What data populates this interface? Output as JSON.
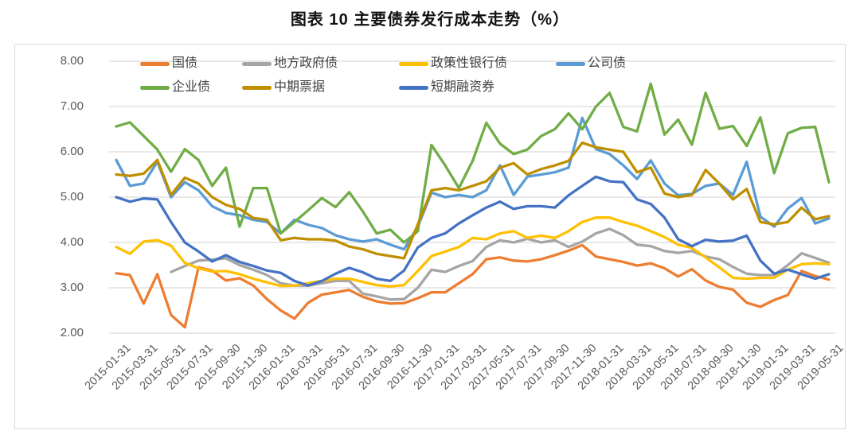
{
  "title": "图表 10 主要债券发行成本走势（%）",
  "frame": {
    "border_color": "#d9d9d9",
    "grid_color": "#d9d9d9",
    "tick_color": "#595959"
  },
  "chart_data": {
    "type": "line",
    "title": "图表 10 主要债券发行成本走势（%）",
    "xlabel": "",
    "ylabel": "",
    "ylim": [
      2.0,
      8.0
    ],
    "y_ticks": [
      "8.00",
      "7.00",
      "6.00",
      "5.00",
      "4.00",
      "3.00",
      "2.00"
    ],
    "grid": "horizontal",
    "legend_position": "top",
    "x": [
      "2015-01-31",
      "2015-02-28",
      "2015-03-31",
      "2015-04-30",
      "2015-05-31",
      "2015-06-30",
      "2015-07-31",
      "2015-08-31",
      "2015-09-30",
      "2015-10-31",
      "2015-11-30",
      "2015-12-31",
      "2016-01-31",
      "2016-02-29",
      "2016-03-31",
      "2016-04-30",
      "2016-05-31",
      "2016-06-30",
      "2016-07-31",
      "2016-08-31",
      "2016-09-30",
      "2016-10-31",
      "2016-11-30",
      "2016-12-31",
      "2017-01-31",
      "2017-02-28",
      "2017-03-31",
      "2017-04-30",
      "2017-05-31",
      "2017-06-30",
      "2017-07-31",
      "2017-08-31",
      "2017-09-30",
      "2017-10-31",
      "2017-11-30",
      "2017-12-31",
      "2018-01-31",
      "2018-02-28",
      "2018-03-31",
      "2018-04-30",
      "2018-05-31",
      "2018-06-30",
      "2018-07-31",
      "2018-08-31",
      "2018-09-30",
      "2018-10-31",
      "2018-11-30",
      "2018-12-31",
      "2019-01-31",
      "2019-02-28",
      "2019-03-31",
      "2019-04-30",
      "2019-05-31"
    ],
    "x_tick_labels": [
      "2015-01-31",
      "2015-03-31",
      "2015-05-31",
      "2015-07-31",
      "2015-09-30",
      "2015-11-30",
      "2016-01-31",
      "2016-03-31",
      "2016-05-31",
      "2016-07-31",
      "2016-09-30",
      "2016-11-30",
      "2017-01-31",
      "2017-03-31",
      "2017-05-31",
      "2017-07-31",
      "2017-09-30",
      "2017-11-30",
      "2018-01-31",
      "2018-03-31",
      "2018-05-31",
      "2018-07-31",
      "2018-09-30",
      "2018-11-30",
      "2019-01-31",
      "2019-03-31",
      "2019-05-31"
    ],
    "series": [
      {
        "name": "国债",
        "color": "#ED7D31",
        "values": [
          3.32,
          3.28,
          2.65,
          3.3,
          2.4,
          2.13,
          3.45,
          3.38,
          3.16,
          3.21,
          3.05,
          2.75,
          2.5,
          2.32,
          2.67,
          2.85,
          2.9,
          2.95,
          2.8,
          2.7,
          2.65,
          2.66,
          2.77,
          2.9,
          2.9,
          3.1,
          3.3,
          3.63,
          3.67,
          3.6,
          3.58,
          3.63,
          3.72,
          3.82,
          3.94,
          3.69,
          3.63,
          3.57,
          3.49,
          3.54,
          3.43,
          3.25,
          3.41,
          3.16,
          3.02,
          2.96,
          2.67,
          2.58,
          2.73,
          2.84,
          3.37,
          3.26,
          3.18
        ]
      },
      {
        "name": "地方政府债",
        "color": "#A5A5A5",
        "values": [
          null,
          null,
          null,
          null,
          3.35,
          3.48,
          3.6,
          3.62,
          3.65,
          3.5,
          3.4,
          3.28,
          3.1,
          3.05,
          3.05,
          3.1,
          3.15,
          3.15,
          2.87,
          2.81,
          2.74,
          2.75,
          3.0,
          3.4,
          3.35,
          3.48,
          3.59,
          3.9,
          4.05,
          4.0,
          4.08,
          4.0,
          4.05,
          3.9,
          4.02,
          4.2,
          4.3,
          4.16,
          3.95,
          3.92,
          3.81,
          3.77,
          3.81,
          3.69,
          3.63,
          3.46,
          3.31,
          3.28,
          3.28,
          3.5,
          3.76,
          3.66,
          3.55
        ]
      },
      {
        "name": "政策性银行债",
        "color": "#FFC000",
        "values": [
          3.9,
          3.75,
          4.02,
          4.05,
          3.93,
          3.55,
          3.43,
          3.36,
          3.37,
          3.3,
          3.2,
          3.12,
          3.04,
          3.05,
          3.1,
          3.15,
          3.2,
          3.2,
          3.13,
          3.06,
          3.03,
          3.06,
          3.37,
          3.7,
          3.8,
          3.9,
          4.1,
          4.07,
          4.2,
          4.25,
          4.1,
          4.15,
          4.1,
          4.25,
          4.45,
          4.55,
          4.55,
          4.45,
          4.37,
          4.25,
          4.12,
          3.95,
          3.88,
          3.67,
          3.45,
          3.22,
          3.2,
          3.22,
          3.22,
          3.4,
          3.52,
          3.54,
          3.52
        ]
      },
      {
        "name": "公司债",
        "color": "#5B9BD5",
        "values": [
          5.82,
          5.25,
          5.3,
          5.78,
          5.0,
          5.33,
          5.15,
          4.8,
          4.65,
          4.6,
          4.5,
          4.45,
          4.2,
          4.5,
          4.39,
          4.32,
          4.16,
          4.07,
          4.02,
          4.07,
          3.95,
          3.85,
          4.35,
          5.1,
          5.0,
          5.05,
          5.0,
          5.15,
          5.7,
          5.05,
          5.45,
          5.5,
          5.55,
          5.65,
          6.75,
          6.06,
          5.95,
          5.7,
          5.4,
          5.81,
          5.3,
          5.04,
          5.07,
          5.25,
          5.3,
          5.05,
          5.78,
          4.57,
          4.35,
          4.75,
          4.98,
          4.42,
          4.53
        ]
      },
      {
        "name": "企业债",
        "color": "#70AD47",
        "values": [
          6.56,
          6.65,
          6.35,
          6.05,
          5.56,
          6.06,
          5.82,
          5.25,
          5.65,
          4.35,
          5.2,
          5.2,
          4.2,
          4.45,
          4.71,
          4.98,
          4.78,
          5.11,
          4.68,
          4.2,
          4.28,
          4.0,
          4.25,
          6.15,
          5.7,
          5.2,
          5.8,
          6.64,
          6.18,
          5.95,
          6.05,
          6.35,
          6.5,
          6.85,
          6.5,
          7.0,
          7.3,
          6.55,
          6.45,
          7.5,
          6.38,
          6.71,
          6.16,
          7.3,
          6.51,
          6.57,
          6.13,
          6.76,
          5.53,
          6.41,
          6.53,
          6.55,
          5.33
        ]
      },
      {
        "name": "中期票据",
        "color": "#BF8F00",
        "values": [
          5.5,
          5.47,
          5.52,
          5.82,
          5.05,
          5.43,
          5.3,
          5.0,
          4.83,
          4.74,
          4.54,
          4.5,
          4.05,
          4.1,
          4.07,
          4.07,
          4.04,
          3.91,
          3.85,
          3.75,
          3.7,
          3.65,
          4.4,
          5.15,
          5.2,
          5.15,
          5.25,
          5.35,
          5.65,
          5.75,
          5.5,
          5.62,
          5.7,
          5.8,
          6.2,
          6.1,
          6.05,
          6.0,
          5.55,
          5.65,
          5.08,
          5.0,
          5.05,
          5.6,
          5.3,
          4.95,
          5.18,
          4.45,
          4.4,
          4.45,
          4.77,
          4.51,
          4.58
        ]
      },
      {
        "name": "短期融资券",
        "color": "#4472C4",
        "values": [
          5.0,
          4.9,
          4.97,
          4.95,
          4.45,
          4.0,
          3.8,
          3.58,
          3.72,
          3.57,
          3.48,
          3.38,
          3.33,
          3.15,
          3.05,
          3.15,
          3.31,
          3.44,
          3.34,
          3.2,
          3.15,
          3.38,
          3.89,
          4.1,
          4.2,
          4.42,
          4.6,
          4.77,
          4.9,
          4.74,
          4.8,
          4.8,
          4.77,
          5.04,
          5.25,
          5.45,
          5.35,
          5.33,
          4.95,
          4.85,
          4.55,
          4.07,
          3.92,
          4.06,
          4.02,
          4.04,
          4.15,
          3.6,
          3.31,
          3.4,
          3.3,
          3.2,
          3.3
        ]
      }
    ],
    "legend_layout": {
      "rows": [
        [
          {
            "col": 0
          },
          {
            "col": 1
          },
          {
            "col": 2
          },
          {
            "col": 3
          }
        ],
        [
          {
            "col": 0
          },
          {
            "col": 1
          },
          {
            "col": 2
          }
        ]
      ],
      "row1_series": [
        "国债",
        "地方政府债",
        "政策性银行债",
        "公司债"
      ],
      "row2_series": [
        "企业债",
        "中期票据",
        "短期融资券"
      ]
    }
  }
}
